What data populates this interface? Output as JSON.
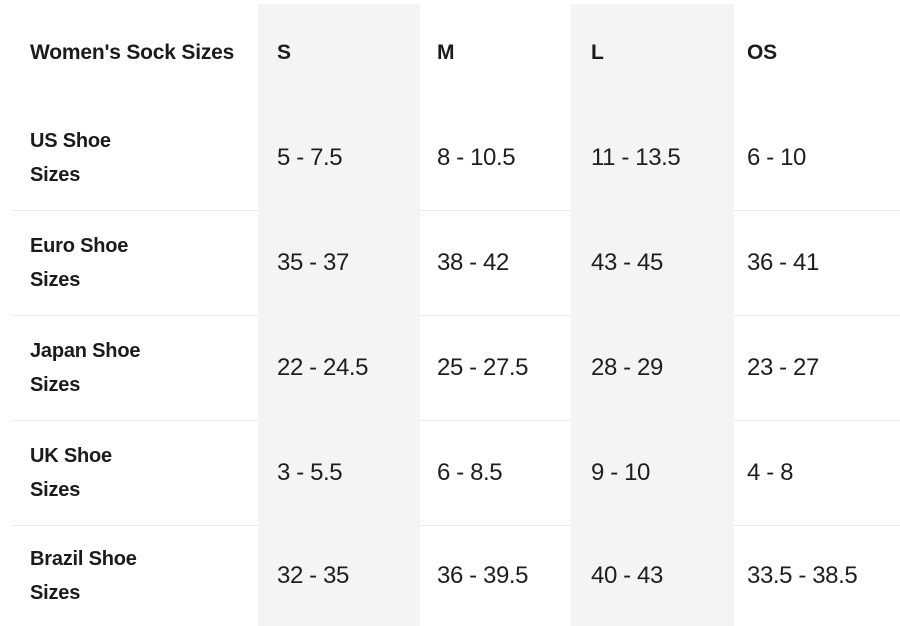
{
  "chart_data": {
    "type": "table",
    "title": "Women's Sock Sizes",
    "columns": [
      "S",
      "M",
      "L",
      "OS"
    ],
    "rows": [
      {
        "label": "US Shoe Sizes",
        "label_lines": [
          "US Shoe",
          "Sizes"
        ],
        "values": [
          "5 - 7.5",
          "8 - 10.5",
          "11 - 13.5",
          "6 - 10"
        ]
      },
      {
        "label": "Euro Shoe Sizes",
        "label_lines": [
          "Euro Shoe",
          "Sizes"
        ],
        "values": [
          "35 - 37",
          "38 - 42",
          "43 - 45",
          "36 - 41"
        ]
      },
      {
        "label": "Japan Shoe Sizes",
        "label_lines": [
          "Japan Shoe",
          "Sizes"
        ],
        "values": [
          "22 - 24.5",
          "25 - 27.5",
          "28 - 29",
          "23 - 27"
        ]
      },
      {
        "label": "UK Shoe Sizes",
        "label_lines": [
          "UK Shoe",
          "Sizes"
        ],
        "values": [
          "3 - 5.5",
          "6 - 8.5",
          "9 - 10",
          "4 - 8"
        ]
      },
      {
        "label": "Brazil Shoe Sizes",
        "label_lines": [
          "Brazil Shoe",
          "Sizes"
        ],
        "values": [
          "32 - 35",
          "36 - 39.5",
          "40 - 43",
          "33.5 - 38.5"
        ]
      }
    ],
    "layout": {
      "shaded_columns": [
        "S",
        "L"
      ],
      "grid": "horizontal separators between data rows only",
      "legend": "none"
    }
  },
  "colors": {
    "background": "#ffffff",
    "column_band": "#f4f4f2",
    "separator": "#e9e9e9",
    "text": "#1b1b1b"
  }
}
